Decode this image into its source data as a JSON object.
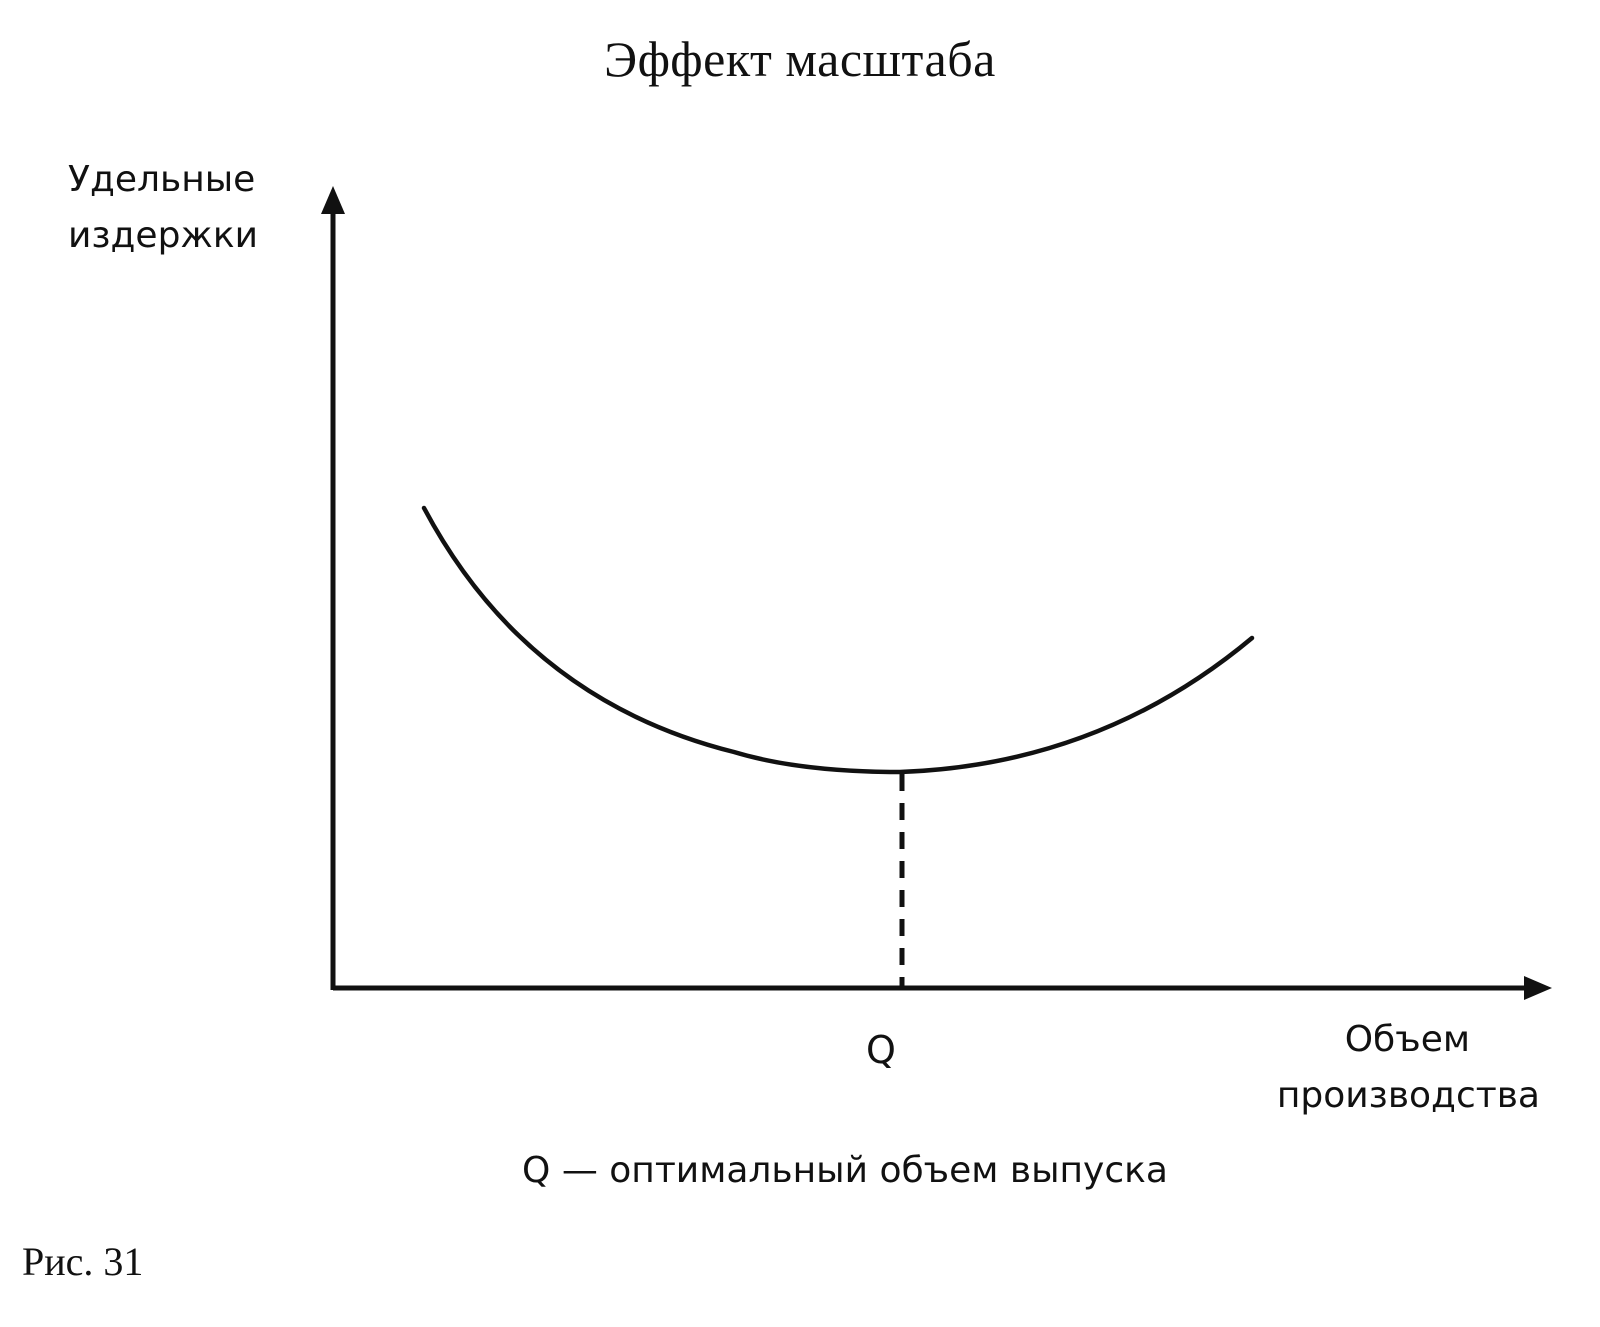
{
  "title": "Эффект масштаба",
  "y_axis": {
    "line1": "Удельные",
    "line2": "издержки"
  },
  "x_axis": {
    "line1": "Объем",
    "line2": "производства"
  },
  "optimum_tick_label": "Q",
  "caption": "Q — оптимальный объем выпуска",
  "figure_label": "Рис. 31",
  "line_color": "#111111"
}
